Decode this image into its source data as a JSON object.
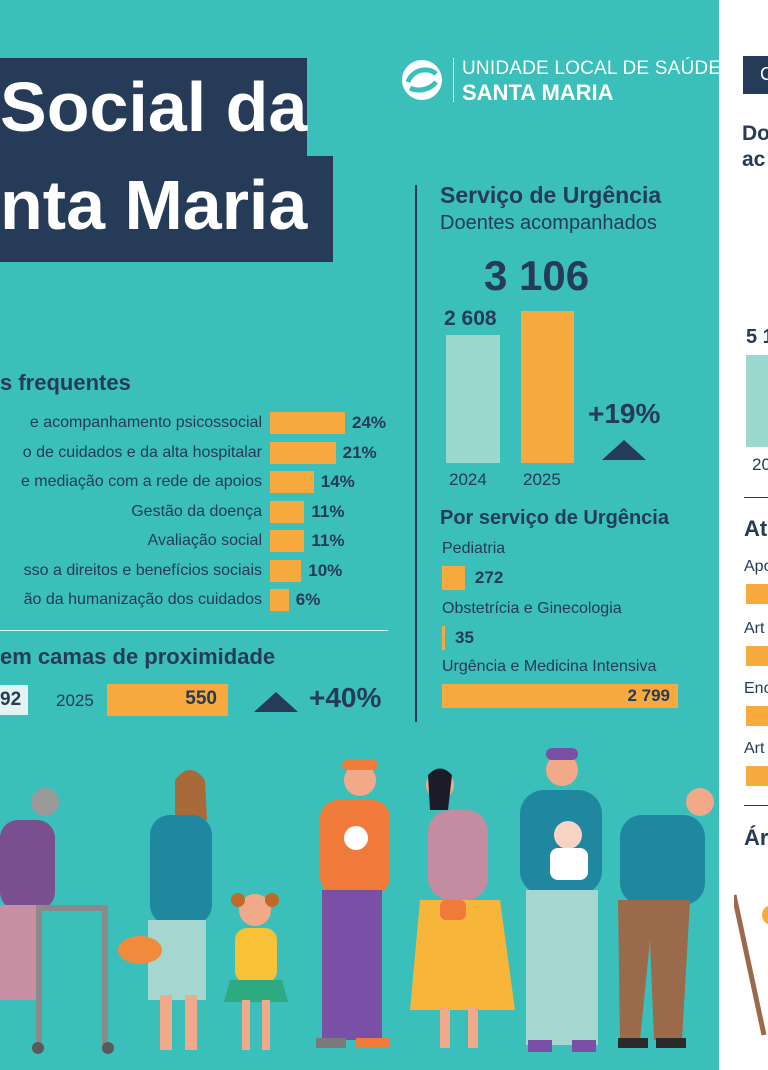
{
  "header": {
    "title_line1": "Social da",
    "title_line2": "nta Maria",
    "org_line1": "UNIDADE LOCAL DE SAÚDE",
    "org_line2": "SANTA MARIA"
  },
  "chart_data": [
    {
      "type": "bar",
      "orientation": "horizontal",
      "title": "s frequentes",
      "categories": [
        "e acompanhamento psicossocial",
        "o de cuidados e da alta hospitalar",
        "e mediação com a rede de apoios",
        "Gestão da doença",
        "Avaliação social",
        "sso a direitos e benefícios sociais",
        "ão da humanização dos cuidados"
      ],
      "values": [
        24,
        21,
        14,
        11,
        11,
        10,
        6
      ],
      "value_labels": [
        "24%",
        "21%",
        "14%",
        "11%",
        "11%",
        "10%",
        "6%"
      ],
      "unit": "%"
    },
    {
      "type": "bar",
      "orientation": "horizontal",
      "title": "em camas de proximidade",
      "categories": [
        "2025"
      ],
      "values": [
        550
      ],
      "value_labels": [
        "550"
      ],
      "prev_value_label": "92",
      "change_label": "+40%"
    },
    {
      "type": "bar",
      "title": "Serviço de Urgência",
      "subtitle": "Doentes acompanhados",
      "total_label": "3 106",
      "categories": [
        "2024",
        "2025"
      ],
      "values": [
        2608,
        3106
      ],
      "value_labels": [
        "2 608",
        ""
      ],
      "change_label": "+19%"
    },
    {
      "type": "bar",
      "orientation": "horizontal",
      "title": "Por serviço de Urgência",
      "categories": [
        "Pediatria",
        "Obstetrícia e Ginecologia",
        "Urgência e Medicina Intensiva"
      ],
      "values": [
        272,
        35,
        2799
      ],
      "value_labels": [
        "272",
        "35",
        "2 799"
      ]
    }
  ],
  "right_strip": {
    "box_text": "C",
    "heading1": "Do",
    "heading2": "ac",
    "value_text": "5 1",
    "axis_text": "20",
    "section2": "At",
    "items": [
      "Apo",
      "Art",
      "Enc",
      "Art"
    ],
    "section3": "Ár"
  },
  "colors": {
    "teal": "#3bbfba",
    "navy": "#253b57",
    "orange": "#f7a93d",
    "light_teal": "#9ad8d0"
  }
}
